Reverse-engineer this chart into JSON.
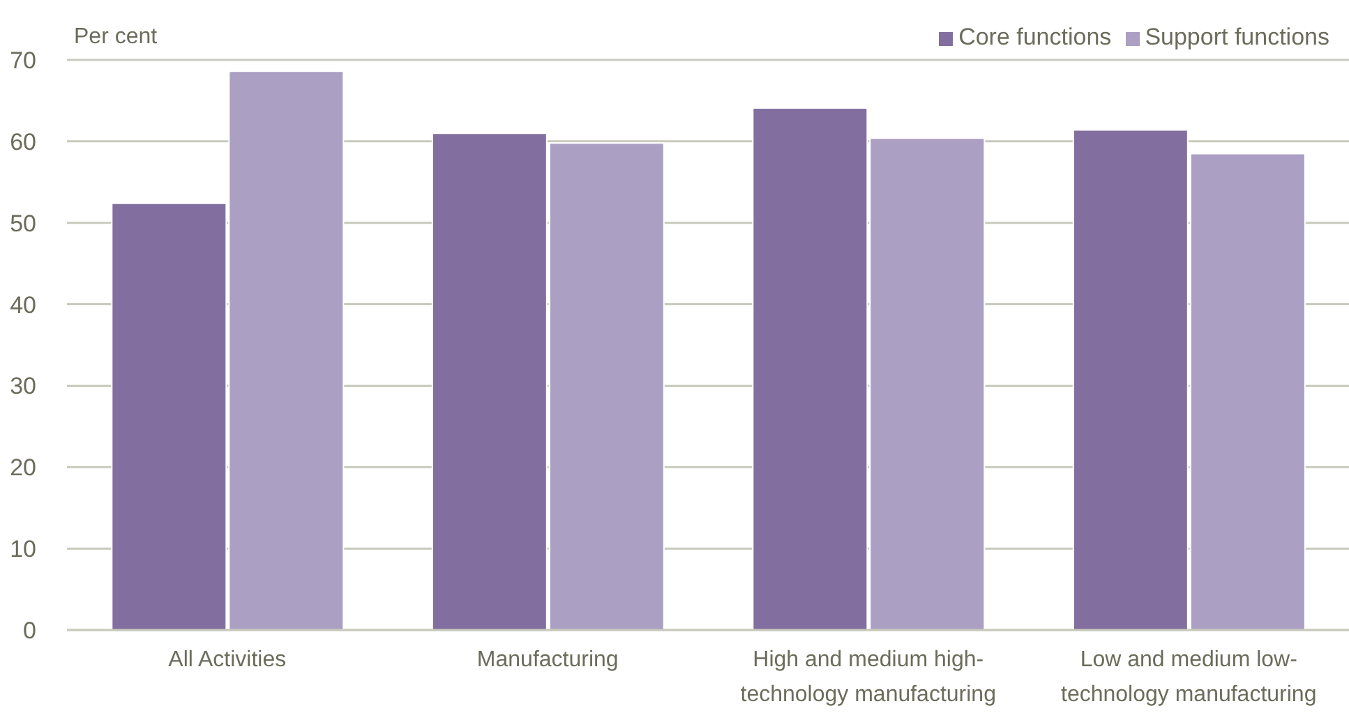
{
  "chart_data": {
    "type": "bar",
    "ylabel": "Per cent",
    "categories": [
      "All Activities",
      "Manufacturing",
      "High and medium high-technology manufacturing",
      "Low and medium low-technology manufacturing"
    ],
    "series": [
      {
        "name": "Core functions",
        "color": "#826f9f",
        "values": [
          52.4,
          61.0,
          64.1,
          61.4
        ]
      },
      {
        "name": "Support functions",
        "color": "#aba0c3",
        "values": [
          68.6,
          59.8,
          60.4,
          58.5
        ]
      }
    ],
    "ylim": [
      0,
      70
    ],
    "yticks": [
      0,
      10,
      20,
      30,
      40,
      50,
      60,
      70
    ],
    "grid": "y",
    "legend": "top right"
  }
}
